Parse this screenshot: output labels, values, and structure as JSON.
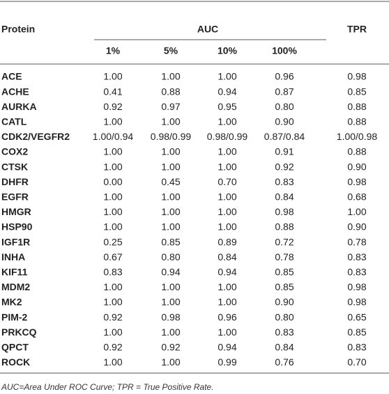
{
  "table": {
    "header": {
      "protein": "Protein",
      "auc": "AUC",
      "tpr": "TPR",
      "sub": [
        "1%",
        "5%",
        "10%",
        "100%"
      ]
    },
    "rows": [
      [
        "ACE",
        "1.00",
        "1.00",
        "1.00",
        "0.96",
        "0.98"
      ],
      [
        "ACHE",
        "0.41",
        "0.88",
        "0.94",
        "0.87",
        "0.85"
      ],
      [
        "AURKA",
        "0.92",
        "0.97",
        "0.95",
        "0.80",
        "0.88"
      ],
      [
        "CATL",
        "1.00",
        "1.00",
        "1.00",
        "0.90",
        "0.88"
      ],
      [
        "CDK2/VEGFR2",
        "1.00/0.94",
        "0.98/0.99",
        "0.98/0.99",
        "0.87/0.84",
        "1.00/0.98"
      ],
      [
        "COX2",
        "1.00",
        "1.00",
        "1.00",
        "0.91",
        "0.88"
      ],
      [
        "CTSK",
        "1.00",
        "1.00",
        "1.00",
        "0.92",
        "0.90"
      ],
      [
        "DHFR",
        "0.00",
        "0.45",
        "0.70",
        "0.83",
        "0.98"
      ],
      [
        "EGFR",
        "1.00",
        "1.00",
        "1.00",
        "0.84",
        "0.68"
      ],
      [
        "HMGR",
        "1.00",
        "1.00",
        "1.00",
        "0.98",
        "1.00"
      ],
      [
        "HSP90",
        "1.00",
        "1.00",
        "1.00",
        "0.88",
        "0.90"
      ],
      [
        "IGF1R",
        "0.25",
        "0.85",
        "0.89",
        "0.72",
        "0.78"
      ],
      [
        "INHA",
        "0.67",
        "0.80",
        "0.84",
        "0.78",
        "0.83"
      ],
      [
        "KIF11",
        "0.83",
        "0.94",
        "0.94",
        "0.85",
        "0.83"
      ],
      [
        "MDM2",
        "1.00",
        "1.00",
        "1.00",
        "0.85",
        "0.98"
      ],
      [
        "MK2",
        "1.00",
        "1.00",
        "1.00",
        "0.90",
        "0.98"
      ],
      [
        "PIM-2",
        "0.92",
        "0.98",
        "0.96",
        "0.80",
        "0.65"
      ],
      [
        "PRKCQ",
        "1.00",
        "1.00",
        "1.00",
        "0.83",
        "0.85"
      ],
      [
        "QPCT",
        "0.92",
        "0.92",
        "0.94",
        "0.84",
        "0.83"
      ],
      [
        "ROCK",
        "1.00",
        "1.00",
        "0.99",
        "0.76",
        "0.70"
      ]
    ]
  },
  "footnote": "AUC=Area Under ROC Curve; TPR = True Positive Rate."
}
